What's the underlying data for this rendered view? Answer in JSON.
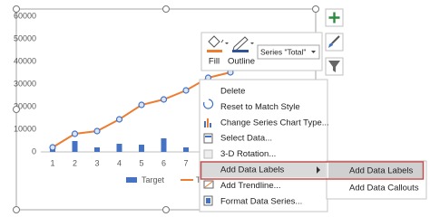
{
  "chart_data": {
    "type": "combo",
    "categories": [
      "1",
      "2",
      "3",
      "4",
      "5",
      "6",
      "7",
      null,
      null
    ],
    "series": [
      {
        "name": "Target",
        "type": "bar",
        "color": "#4472c4",
        "values": [
          2800,
          4800,
          2000,
          3600,
          3200,
          6000,
          2000,
          null,
          null
        ]
      },
      {
        "name": "Total",
        "type": "line",
        "color": "#ed7d31",
        "values": [
          2000,
          8000,
          9200,
          14400,
          20800,
          23200,
          27200,
          32800,
          35200
        ]
      }
    ],
    "ylim": [
      0,
      60000
    ],
    "yticks": [
      0,
      10000,
      20000,
      30000,
      40000,
      50000,
      60000
    ],
    "grid": false
  },
  "toolbar": {
    "fill": "Fill",
    "outline": "Outline",
    "series_selector": "Series \"Total\""
  },
  "context_menu": {
    "items": [
      {
        "label": "Delete"
      },
      {
        "label": "Reset to Match Style"
      },
      {
        "label": "Change Series Chart Type..."
      },
      {
        "label": "Select Data..."
      },
      {
        "label": "3-D Rotation...",
        "disabled": true
      },
      {
        "label": "Add Data Labels"
      },
      {
        "label": "Add Trendline..."
      },
      {
        "label": "Format Data Series..."
      }
    ],
    "submenu": [
      "Add Data Labels",
      "Add Data Callouts"
    ]
  }
}
